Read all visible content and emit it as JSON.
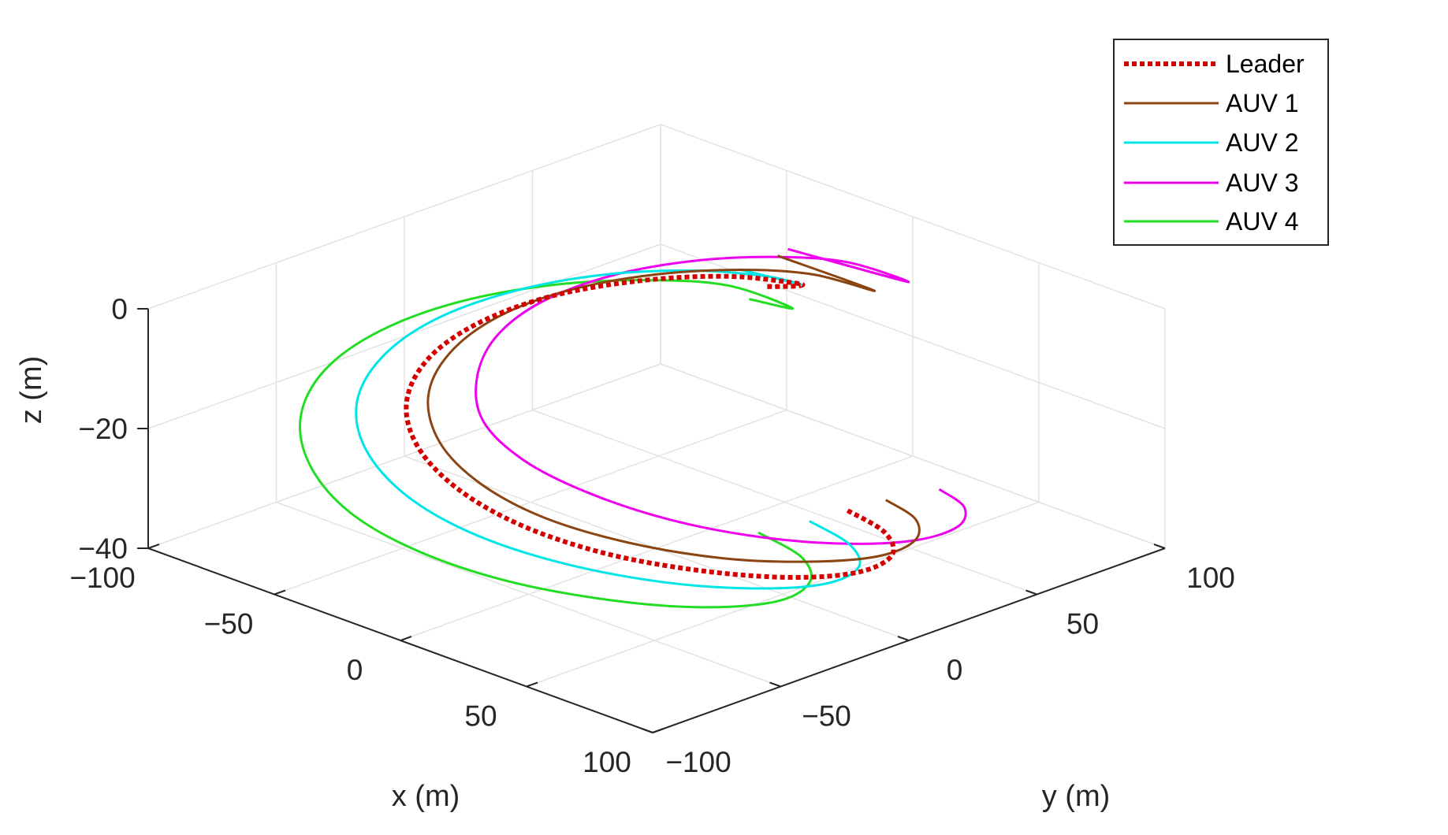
{
  "chart_data": {
    "type": "line3d",
    "title": "",
    "xlabel": "x (m)",
    "ylabel": "y (m)",
    "zlabel": "z (m)",
    "xlim": [
      -100,
      100
    ],
    "ylim": [
      -100,
      100
    ],
    "zlim": [
      -40,
      0
    ],
    "xticks": [
      -100,
      -50,
      0,
      50,
      100
    ],
    "yticks": [
      -100,
      -50,
      0,
      50,
      100
    ],
    "zticks": [
      -40,
      -20,
      0
    ],
    "xtick_labels": [
      "−100",
      "−50",
      "0",
      "50",
      "100"
    ],
    "ytick_labels": [
      "−100",
      "−50",
      "0",
      "50",
      "100"
    ],
    "ztick_labels": [
      "−40",
      "−20",
      "0"
    ],
    "grid": true,
    "legend_position": "top-right",
    "series": [
      {
        "name": "Leader",
        "color": "#d40000",
        "style": "dotted",
        "points": [
          [
            30.0,
            45.0,
            -36.0
          ],
          [
            55.0,
            34.8,
            -34.2
          ],
          [
            75.0,
            18.0,
            -32.4
          ],
          [
            83.5,
            -3.5,
            -30.6
          ],
          [
            79.5,
            -25.5,
            -28.7
          ],
          [
            65.0,
            -45.5,
            -26.8
          ],
          [
            43.0,
            -61.0,
            -25.0
          ],
          [
            17.0,
            -68.5,
            -23.2
          ],
          [
            -9.5,
            -67.5,
            -21.4
          ],
          [
            -35.0,
            -58.5,
            -19.6
          ],
          [
            -56.0,
            -42.5,
            -17.8
          ],
          [
            -70.0,
            -20.5,
            -16.1
          ],
          [
            -74.0,
            3.0,
            -14.3
          ],
          [
            -68.5,
            26.5,
            -12.5
          ],
          [
            -53.5,
            46.5,
            -10.7
          ],
          [
            -33.0,
            60.0,
            -8.9
          ],
          [
            -10.0,
            64.0,
            -7.1
          ],
          [
            -6.0,
            61.0,
            -6.5
          ],
          [
            -10.0,
            53.0,
            -6.0
          ]
        ]
      },
      {
        "name": "AUV 1",
        "color": "#8b4513",
        "style": "solid",
        "points": [
          [
            35.0,
            55.0,
            -35.0
          ],
          [
            58.0,
            44.0,
            -33.0
          ],
          [
            76.0,
            26.0,
            -31.0
          ],
          [
            84.0,
            4.0,
            -29.0
          ],
          [
            80.0,
            -19.0,
            -27.0
          ],
          [
            66.0,
            -39.0,
            -25.5
          ],
          [
            44.0,
            -54.0,
            -24.0
          ],
          [
            18.0,
            -62.0,
            -22.5
          ],
          [
            -8.0,
            -61.0,
            -21.0
          ],
          [
            -33.0,
            -52.0,
            -19.5
          ],
          [
            -54.0,
            -36.0,
            -17.5
          ],
          [
            -67.0,
            -15.0,
            -15.5
          ],
          [
            -71.0,
            8.0,
            -13.5
          ],
          [
            -65.0,
            30.0,
            -11.5
          ],
          [
            -50.0,
            49.0,
            -9.5
          ],
          [
            -29.0,
            62.0,
            -7.5
          ],
          [
            -6.0,
            67.0,
            -5.5
          ],
          [
            5.0,
            80.0,
            -8.5
          ],
          [
            -15.0,
            62.0,
            -3.0
          ]
        ]
      },
      {
        "name": "AUV 2",
        "color": "#00e5e5",
        "style": "solid",
        "points": [
          [
            25.0,
            35.0,
            -37.0
          ],
          [
            52.0,
            24.0,
            -35.0
          ],
          [
            73.0,
            7.0,
            -33.0
          ],
          [
            82.0,
            -15.0,
            -31.0
          ],
          [
            77.0,
            -38.0,
            -29.0
          ],
          [
            62.0,
            -59.0,
            -27.0
          ],
          [
            38.0,
            -75.0,
            -25.0
          ],
          [
            11.0,
            -83.0,
            -23.0
          ],
          [
            -16.0,
            -82.0,
            -21.0
          ],
          [
            -42.0,
            -72.0,
            -19.0
          ],
          [
            -63.0,
            -55.0,
            -17.0
          ],
          [
            -76.0,
            -33.0,
            -15.0
          ],
          [
            -80.0,
            -9.0,
            -13.0
          ],
          [
            -74.0,
            15.0,
            -11.0
          ],
          [
            -59.0,
            36.0,
            -9.0
          ],
          [
            -37.0,
            50.0,
            -7.0
          ],
          [
            -13.0,
            55.0,
            -5.0
          ],
          [
            -8.0,
            64.0,
            -7.0
          ],
          [
            -20.0,
            52.0,
            -4.5
          ]
        ]
      },
      {
        "name": "AUV 3",
        "color": "#ee00ee",
        "style": "solid",
        "points": [
          [
            43.0,
            68.0,
            -34.0
          ],
          [
            64.0,
            57.0,
            -32.0
          ],
          [
            80.0,
            39.0,
            -30.0
          ],
          [
            86.0,
            17.0,
            -28.0
          ],
          [
            81.0,
            -5.0,
            -26.0
          ],
          [
            67.0,
            -25.0,
            -24.0
          ],
          [
            46.0,
            -40.0,
            -22.0
          ],
          [
            21.0,
            -48.0,
            -20.0
          ],
          [
            -4.0,
            -48.0,
            -18.5
          ],
          [
            -28.0,
            -40.0,
            -17.0
          ],
          [
            -47.0,
            -24.0,
            -15.5
          ],
          [
            -60.0,
            -4.0,
            -13.5
          ],
          [
            -64.0,
            18.0,
            -11.5
          ],
          [
            -58.0,
            40.0,
            -9.5
          ],
          [
            -43.0,
            58.0,
            -7.5
          ],
          [
            -22.0,
            70.0,
            -5.5
          ],
          [
            1.0,
            74.0,
            -3.5
          ],
          [
            10.0,
            88.0,
            -7.5
          ],
          [
            -15.0,
            66.0,
            -2.5
          ]
        ]
      },
      {
        "name": "AUV 4",
        "color": "#22dd22",
        "style": "solid",
        "points": [
          [
            18.0,
            22.0,
            -38.0
          ],
          [
            46.0,
            11.0,
            -36.0
          ],
          [
            68.0,
            -7.0,
            -34.0
          ],
          [
            79.0,
            -30.0,
            -32.0
          ],
          [
            75.0,
            -54.0,
            -30.0
          ],
          [
            60.0,
            -75.0,
            -28.0
          ],
          [
            35.0,
            -92.0,
            -26.0
          ],
          [
            7.0,
            -100.0,
            -24.0
          ],
          [
            -21.0,
            -99.0,
            -22.0
          ],
          [
            -48.0,
            -88.0,
            -20.0
          ],
          [
            -70.0,
            -70.0,
            -18.0
          ],
          [
            -84.0,
            -47.0,
            -16.0
          ],
          [
            -88.0,
            -22.0,
            -14.0
          ],
          [
            -82.0,
            3.0,
            -12.0
          ],
          [
            -66.0,
            25.0,
            -10.0
          ],
          [
            -43.0,
            40.0,
            -8.0
          ],
          [
            -18.0,
            46.0,
            -6.0
          ],
          [
            -3.0,
            56.0,
            -9.0
          ],
          [
            -10.0,
            46.0,
            -7.0
          ]
        ]
      }
    ]
  }
}
